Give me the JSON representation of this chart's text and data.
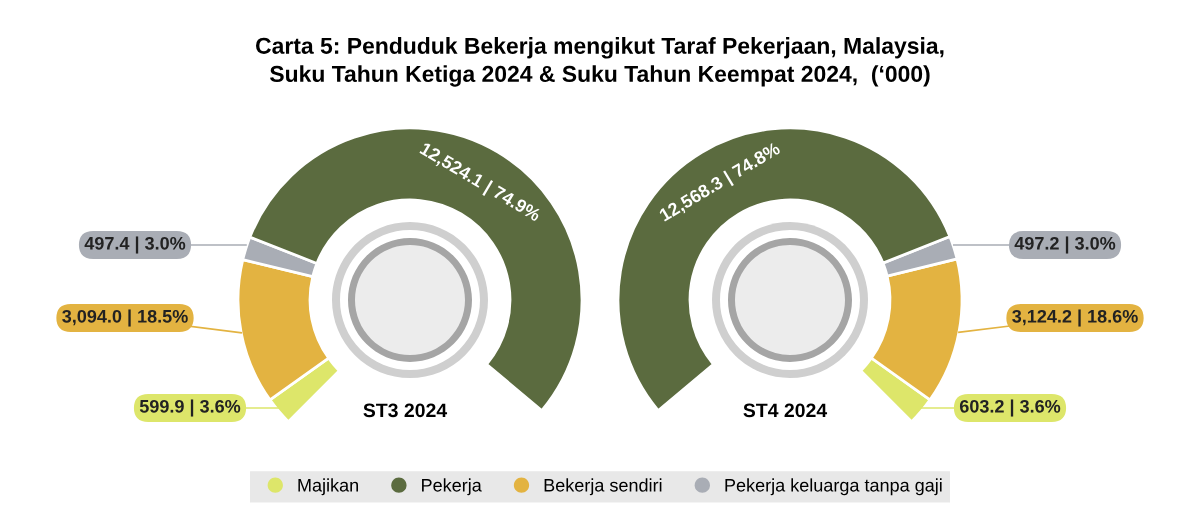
{
  "chart_data": [
    {
      "type": "donut",
      "title": "Carta 5: Penduduk Bekerja mengikut Taraf Pekerjaan, Malaysia,\nSuku Tahun Ketiga 2024 & Suku Tahun Keempat 2024,  (‘000)",
      "subtitle": "ST3 2024",
      "categories": [
        "Majikan",
        "Pekerja",
        "Bekerja sendiri",
        "Pekerja keluarga tanpa gaji"
      ],
      "values": [
        599.9,
        12524.1,
        3094.0,
        497.4
      ],
      "value_labels": [
        "599.9 | 3.6%",
        "12,524.1 | 74.9%",
        "3,094.0 | 18.5%",
        "497.4 | 3.0%"
      ],
      "colors": [
        "#dde66a",
        "#5b6b3f",
        "#e3b341",
        "#a9adb5"
      ],
      "legend": "bottom"
    },
    {
      "type": "donut",
      "subtitle": "ST4 2024",
      "values": [
        603.2,
        12568.3,
        3124.2,
        497.2
      ],
      "value_labels": [
        "603.2 | 3.6%",
        "12,568.3 | 74.8%",
        "3,124.2 | 18.6%",
        "497.2 | 3.0%"
      ],
      "colors": [
        "#dde66a",
        "#5b6b3f",
        "#e3b341",
        "#a9adb5"
      ]
    }
  ]
}
